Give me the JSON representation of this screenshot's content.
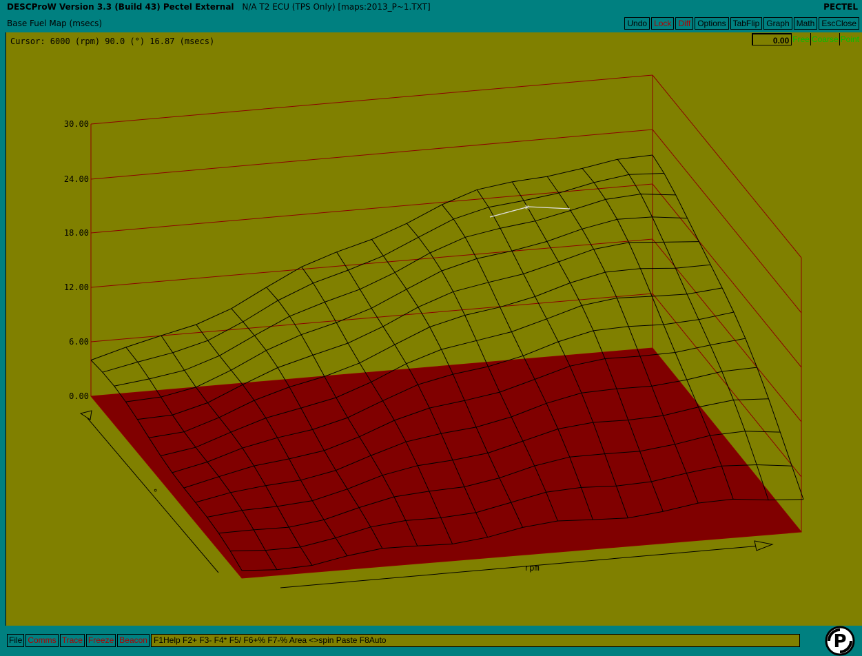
{
  "titlebar": {
    "app": "DESCProW Version 3.3 (Build 43) Pectel External",
    "file": "N/A T2 ECU (TPS Only) [maps:2013_P~1.TXT]",
    "brand": "PECTEL"
  },
  "mapbar": {
    "title": "Base Fuel Map (msecs)",
    "buttons": [
      {
        "label": "Undo",
        "color": "dark"
      },
      {
        "label": "Lock",
        "color": "red"
      },
      {
        "label": "Diff",
        "color": "red"
      },
      {
        "label": "Options",
        "color": "dark"
      },
      {
        "label": "TabFlip",
        "color": "dark",
        "bold": "Tab"
      },
      {
        "label": "Graph",
        "color": "dark"
      },
      {
        "label": "Math",
        "color": "dark"
      },
      {
        "label": "EscClose",
        "color": "dark",
        "bold": "Esc"
      }
    ]
  },
  "status": {
    "cursor": "Cursor: 6000 (rpm) 90.0 (°) 16.87 (msecs)",
    "value": "0.00",
    "modes": [
      "Free",
      "Coarse",
      "Point"
    ]
  },
  "chart_data": {
    "type": "surface",
    "z_ticks": [
      "30.00",
      "24.00",
      "18.00",
      "12.00",
      "6.00",
      "0.00"
    ],
    "xlabel": "rpm",
    "ylabel": "°",
    "cursor_value": 16.87
  },
  "footer": {
    "buttons": [
      {
        "label": "File",
        "color": "dark"
      },
      {
        "label": "Comms",
        "color": "red"
      },
      {
        "label": "Trace",
        "color": "red"
      },
      {
        "label": "Freeze",
        "color": "red"
      },
      {
        "label": "Beacon",
        "color": "red"
      }
    ],
    "keyhelp": "F1Help F2+ F3- F4* F5/ F6+% F7-% Area <>spin Paste F8Auto"
  },
  "colors": {
    "background": "#008080",
    "plot": "#808000",
    "floor": "#800000",
    "grid": "#8b0000",
    "mode_text": "#00c000"
  }
}
